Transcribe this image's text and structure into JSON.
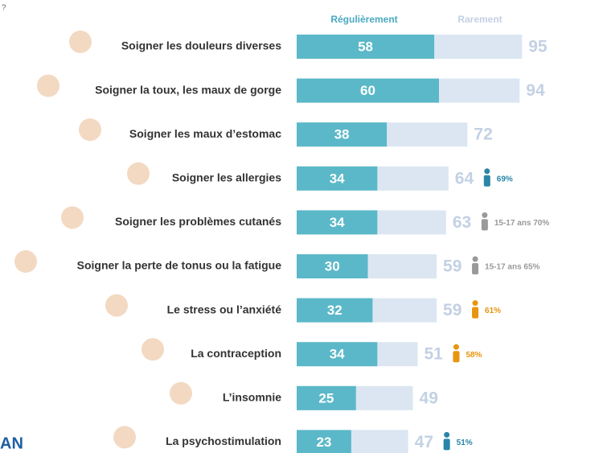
{
  "chart_data": {
    "type": "overlay-bar",
    "categories": [
      "Soigner les douleurs diverses",
      "Soigner la toux, les maux de gorge",
      "Soigner les maux d’estomac",
      "Soigner les allergies",
      "Soigner les problèmes cutanés",
      "Soigner la perte de tonus ou la fatigue",
      "Le stress ou l’anxiété",
      "La contraception",
      "L’insomnie",
      "La psychostimulation"
    ],
    "series": [
      {
        "name": "Régulièrement",
        "color": "#5bb8c8",
        "label_color": "#4aa9c2",
        "values": [
          58,
          60,
          38,
          34,
          34,
          30,
          32,
          34,
          25,
          23
        ]
      },
      {
        "name": "Rarement",
        "color": "#dbe6f2",
        "label_color": "#c3d1e4",
        "values": [
          95,
          94,
          72,
          64,
          63,
          59,
          59,
          51,
          49,
          47
        ]
      }
    ],
    "xlim": [
      0,
      100
    ],
    "annotations": [
      null,
      null,
      null,
      "69%",
      "15-17 ans 70%",
      "15-17 ans 65%",
      "61%",
      "58%",
      null,
      "51%"
    ],
    "annotation_colors": [
      null,
      null,
      null,
      "#2a85a8",
      "#999999",
      "#999999",
      "#e8950f",
      "#e8950f",
      null,
      "#2a85a8"
    ],
    "fragments": [
      "?",
      "AN"
    ]
  }
}
